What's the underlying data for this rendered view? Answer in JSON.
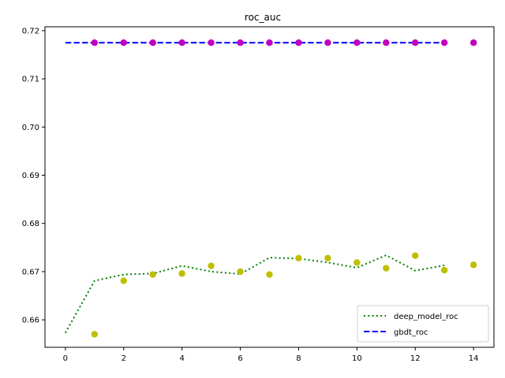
{
  "chart_data": {
    "type": "line",
    "title": "roc_auc",
    "xlabel": "",
    "ylabel": "",
    "xlim": [
      -0.7,
      14.7
    ],
    "ylim": [
      0.6543,
      0.7208
    ],
    "xticks": [
      0,
      2,
      4,
      6,
      8,
      10,
      12,
      14
    ],
    "yticks": [
      0.66,
      0.67,
      0.68,
      0.69,
      0.7,
      0.71,
      0.72
    ],
    "ytick_labels": [
      "0.66",
      "0.67",
      "0.68",
      "0.69",
      "0.70",
      "0.71",
      "0.72"
    ],
    "grid": false,
    "legend_position": "lower-right",
    "series": [
      {
        "name": "deep_model_roc",
        "style": "dotted",
        "color": "#008000",
        "x": [
          0,
          1,
          2,
          3,
          4,
          5,
          6,
          7,
          8,
          9,
          10,
          11,
          12,
          13
        ],
        "y": [
          0.6573,
          0.6681,
          0.6694,
          0.6696,
          0.6712,
          0.67,
          0.6695,
          0.6729,
          0.6727,
          0.6719,
          0.6708,
          0.6734,
          0.6702,
          0.6713
        ]
      },
      {
        "name": "gbdt_roc",
        "style": "dashed",
        "color": "#0000ff",
        "x": [
          0,
          1,
          2,
          3,
          4,
          5,
          6,
          7,
          8,
          9,
          10,
          11,
          12,
          13
        ],
        "y": [
          0.7175,
          0.7175,
          0.7175,
          0.7175,
          0.7175,
          0.7175,
          0.7175,
          0.7175,
          0.7175,
          0.7175,
          0.7175,
          0.7175,
          0.7175,
          0.7175
        ]
      }
    ],
    "scatter": [
      {
        "color": "#bfbf00",
        "x": [
          1,
          2,
          3,
          4,
          5,
          6,
          7,
          8,
          9,
          10,
          11,
          12,
          13,
          14
        ],
        "y": [
          0.657,
          0.6681,
          0.6694,
          0.6696,
          0.6712,
          0.67,
          0.6694,
          0.6728,
          0.6728,
          0.6719,
          0.6707,
          0.6733,
          0.6703,
          0.6714
        ]
      },
      {
        "color": "#bf00bf",
        "x": [
          1,
          2,
          3,
          4,
          5,
          6,
          7,
          8,
          9,
          10,
          11,
          12,
          13,
          14
        ],
        "y": [
          0.7175,
          0.7175,
          0.7175,
          0.7175,
          0.7175,
          0.7175,
          0.7175,
          0.7175,
          0.7175,
          0.7175,
          0.7175,
          0.7175,
          0.7175,
          0.7175
        ]
      }
    ]
  }
}
